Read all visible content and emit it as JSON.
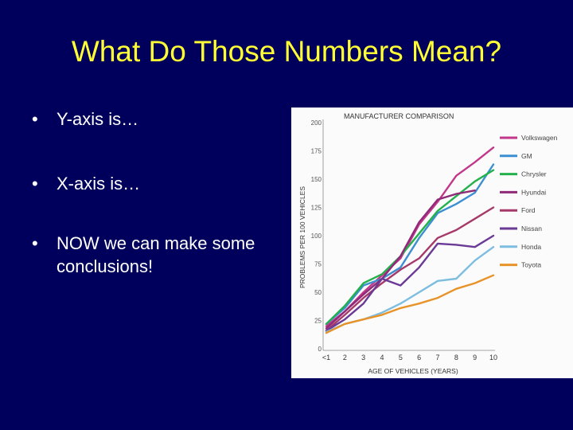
{
  "slide": {
    "title": "What Do Those Numbers Mean?",
    "bullets": [
      {
        "marker": "•",
        "text": "Y-axis is…"
      },
      {
        "marker": "•",
        "text": "X-axis is…"
      },
      {
        "marker": "•",
        "text": "NOW we can make some conclusions!"
      }
    ]
  },
  "colors": {
    "background": "#00005c",
    "title": "#ffff33",
    "text": "#ffffff"
  },
  "chart_data": {
    "type": "line",
    "title": "MANUFACTURER COMPARISON",
    "xlabel": "AGE OF VEHICLES (YEARS)",
    "ylabel": "PROBLEMS PER 100 VEHICLES",
    "x": [
      1,
      2,
      3,
      4,
      5,
      6,
      7,
      8,
      9,
      10
    ],
    "x_tick_labels": [
      "<1",
      "2",
      "3",
      "4",
      "5",
      "6",
      "7",
      "8",
      "9",
      "10"
    ],
    "y_ticks": [
      0,
      25,
      50,
      75,
      100,
      125,
      150,
      175,
      200
    ],
    "xlim": [
      1,
      10
    ],
    "ylim": [
      0,
      200
    ],
    "grid": false,
    "legend_position": "right",
    "series": [
      {
        "name": "Volkswagen",
        "color": "#c2378a",
        "values": [
          20,
          33,
          50,
          65,
          80,
          110,
          130,
          153,
          165,
          178
        ]
      },
      {
        "name": "GM",
        "color": "#3c8fd0",
        "values": [
          22,
          36,
          56,
          62,
          72,
          98,
          120,
          128,
          138,
          163
        ]
      },
      {
        "name": "Chrysler",
        "color": "#22b14c",
        "values": [
          22,
          38,
          58,
          66,
          82,
          102,
          122,
          135,
          148,
          158
        ]
      },
      {
        "name": "Hyundai",
        "color": "#8f2a78",
        "values": [
          18,
          33,
          48,
          62,
          82,
          112,
          132,
          137,
          140,
          null
        ]
      },
      {
        "name": "Ford",
        "color": "#a63a6a",
        "values": [
          16,
          30,
          45,
          58,
          70,
          80,
          98,
          105,
          115,
          125
        ]
      },
      {
        "name": "Nissan",
        "color": "#6a3a96",
        "values": [
          16,
          26,
          40,
          62,
          56,
          72,
          93,
          92,
          90,
          100
        ]
      },
      {
        "name": "Honda",
        "color": "#7dbde0",
        "values": [
          15,
          22,
          26,
          32,
          40,
          50,
          60,
          62,
          78,
          90
        ]
      },
      {
        "name": "Toyota",
        "color": "#e8932a",
        "values": [
          14,
          22,
          26,
          30,
          36,
          40,
          45,
          53,
          58,
          65
        ]
      }
    ]
  }
}
